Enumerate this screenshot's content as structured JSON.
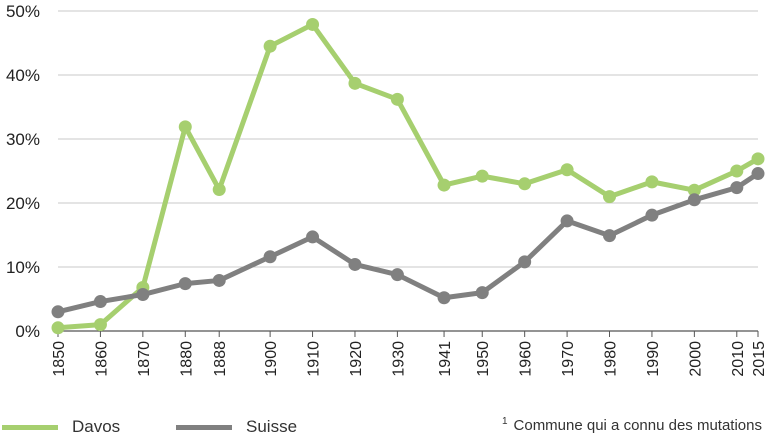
{
  "chart_data": {
    "type": "line",
    "categories": [
      "1850",
      "1860",
      "1870",
      "1880",
      "1888",
      "1900",
      "1910",
      "1920",
      "1930",
      "1941",
      "1950",
      "1960",
      "1970",
      "1980",
      "1990",
      "2000",
      "2010",
      "2015"
    ],
    "x": [
      1850,
      1860,
      1870,
      1880,
      1888,
      1900,
      1910,
      1920,
      1930,
      1941,
      1950,
      1960,
      1970,
      1980,
      1990,
      2000,
      2010,
      2015
    ],
    "series": [
      {
        "name": "Davos",
        "color": "#a6cf6f",
        "values": [
          0.5,
          1.0,
          6.8,
          31.9,
          22.1,
          44.5,
          47.9,
          38.7,
          36.2,
          22.8,
          24.2,
          23.0,
          25.2,
          21.0,
          23.3,
          22.0,
          25.0,
          26.9
        ]
      },
      {
        "name": "Suisse",
        "color": "#808080",
        "values": [
          3.0,
          4.6,
          5.7,
          7.4,
          7.9,
          11.6,
          14.7,
          10.4,
          8.8,
          5.2,
          6.0,
          10.8,
          17.2,
          14.9,
          18.1,
          20.5,
          22.4,
          24.6
        ]
      }
    ],
    "y_ticks": [
      "0%",
      "10%",
      "20%",
      "30%",
      "40%",
      "50%"
    ],
    "ylim": [
      0,
      50
    ],
    "grid": "horizontal",
    "legend_position": "bottom-left",
    "footnote": {
      "marker": "1",
      "text": "Commune qui a connu des mutations"
    }
  }
}
